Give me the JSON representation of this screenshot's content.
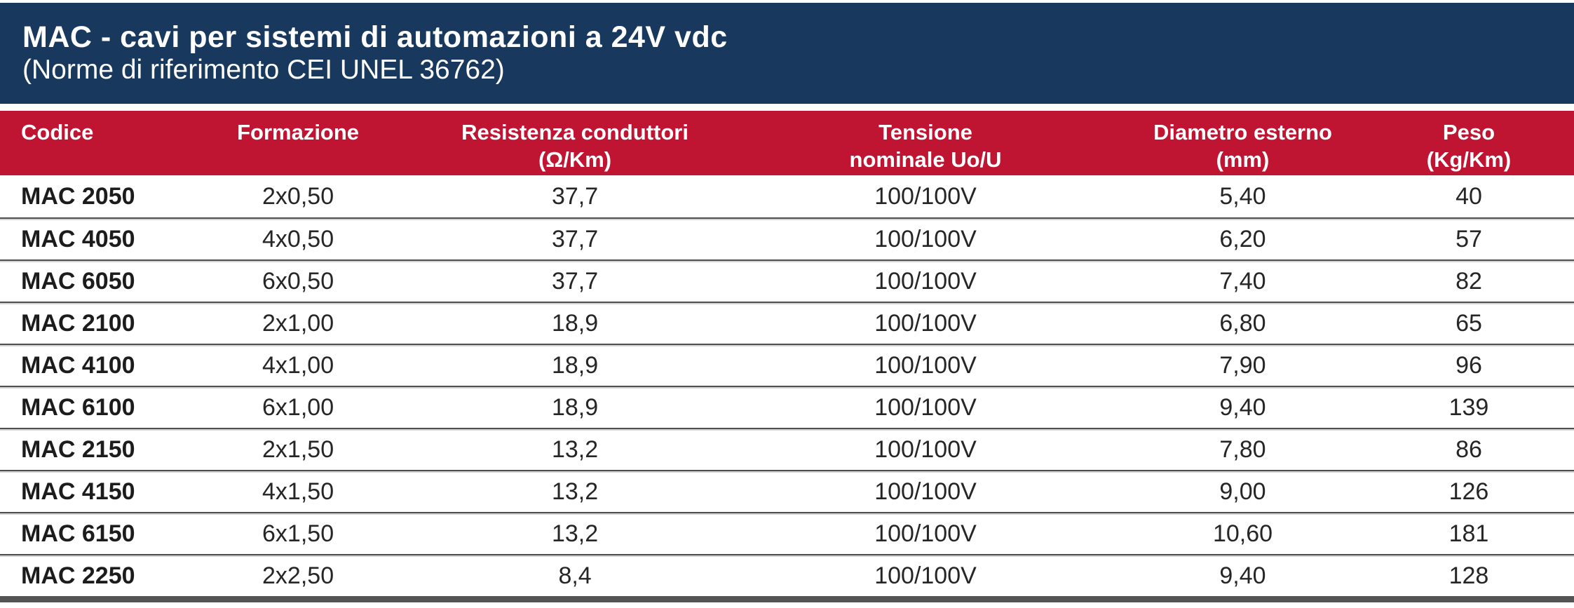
{
  "title": {
    "main": "MAC - cavi per sistemi di automazioni a 24V vdc",
    "subtitle": "(Norme di riferimento CEI UNEL 36762)"
  },
  "colors": {
    "title_banner_navy": "#18395d",
    "header_row_red": "#c01532",
    "bottom_bar_gray": "#545454",
    "row_separator_dark": "#4f4f4f",
    "row_separator_light": "#d2d2d2"
  },
  "table": {
    "columns": [
      {
        "id": "codice",
        "label": "Codice"
      },
      {
        "id": "formazione",
        "label": "Formazione"
      },
      {
        "id": "resistenza",
        "label": "Resistenza conduttori\n(Ω/Km)"
      },
      {
        "id": "tensione",
        "label": "Tensione\nnominale Uo/U"
      },
      {
        "id": "diametro",
        "label": "Diametro esterno\n(mm)"
      },
      {
        "id": "peso",
        "label": "Peso\n(Kg/Km)"
      }
    ],
    "rows": [
      [
        "MAC 2050",
        "2x0,50",
        "37,7",
        "100/100V",
        "5,40",
        "40"
      ],
      [
        "MAC 4050",
        "4x0,50",
        "37,7",
        "100/100V",
        "6,20",
        "57"
      ],
      [
        "MAC 6050",
        "6x0,50",
        "37,7",
        "100/100V",
        "7,40",
        "82"
      ],
      [
        "MAC 2100",
        "2x1,00",
        "18,9",
        "100/100V",
        "6,80",
        "65"
      ],
      [
        "MAC 4100",
        "4x1,00",
        "18,9",
        "100/100V",
        "7,90",
        "96"
      ],
      [
        "MAC 6100",
        "6x1,00",
        "18,9",
        "100/100V",
        "9,40",
        "139"
      ],
      [
        "MAC 2150",
        "2x1,50",
        "13,2",
        "100/100V",
        "7,80",
        "86"
      ],
      [
        "MAC 4150",
        "4x1,50",
        "13,2",
        "100/100V",
        "9,00",
        "126"
      ],
      [
        "MAC 6150",
        "6x1,50",
        "13,2",
        "100/100V",
        "10,60",
        "181"
      ],
      [
        "MAC 2250",
        "2x2,50",
        "8,4",
        "100/100V",
        "9,40",
        "128"
      ]
    ]
  }
}
